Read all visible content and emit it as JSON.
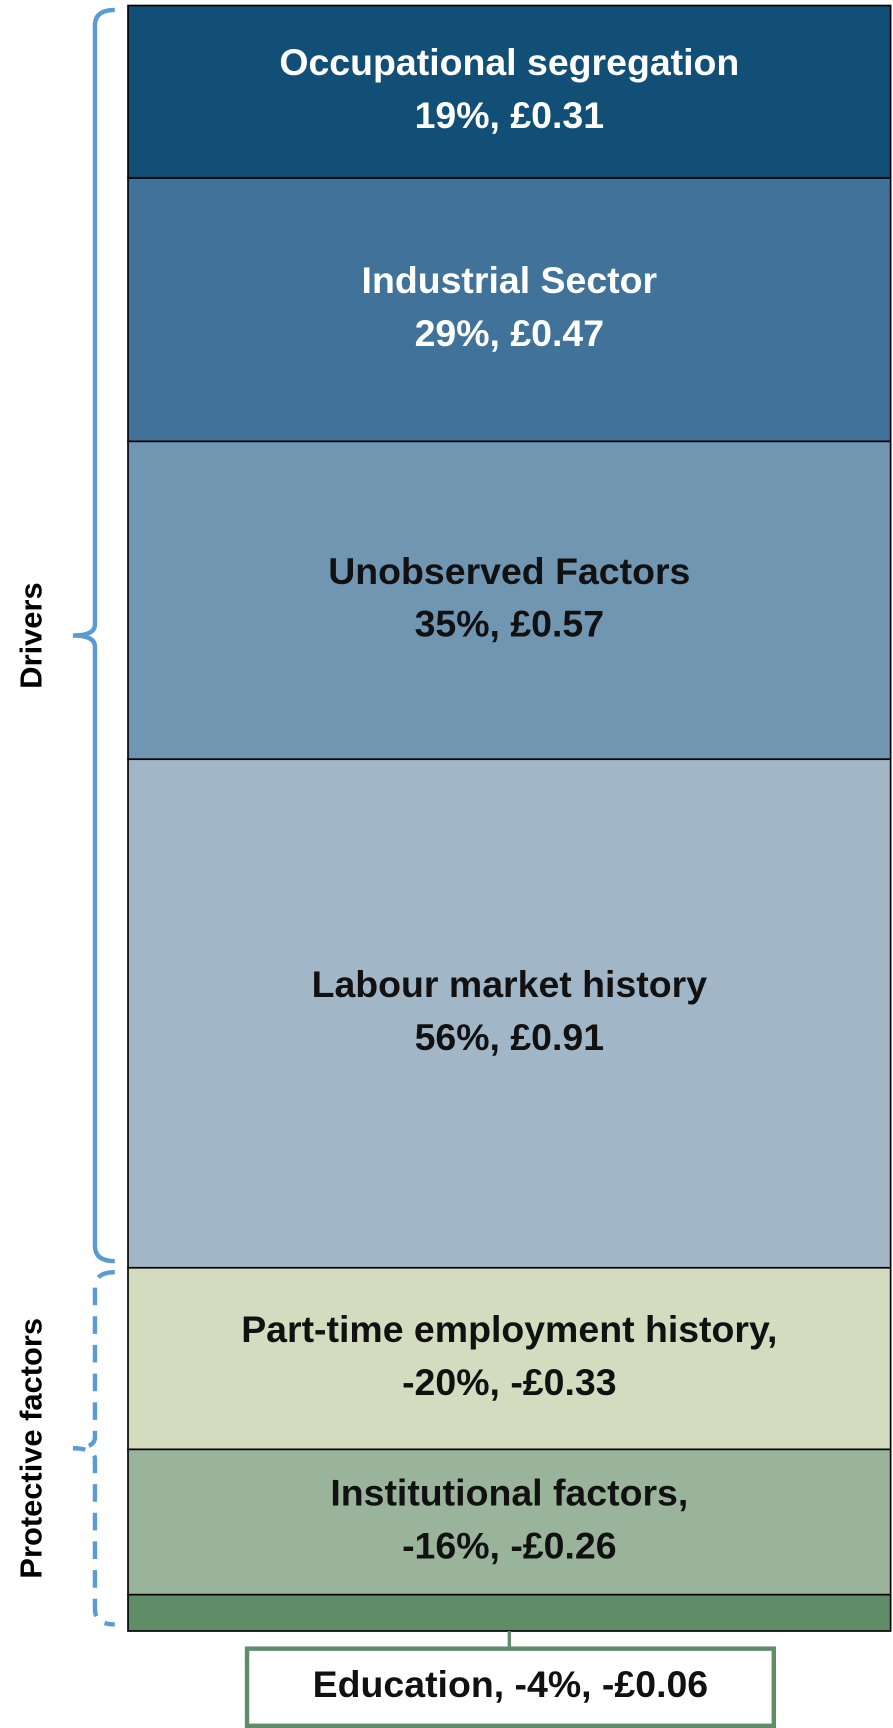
{
  "chart_data": {
    "type": "stacked-column",
    "groups": [
      {
        "name": "Drivers",
        "segments": [
          {
            "category": "Occupational segregation",
            "value": 19,
            "value_label": "19%, £0.31",
            "color": "#124f77"
          },
          {
            "category": "Industrial Sector",
            "value": 29,
            "value_label": "29%, £0.47",
            "color": "#41739a"
          },
          {
            "category": "Unobserved Factors",
            "value": 35,
            "value_label": "35%, £0.57",
            "color": "#7096b2"
          },
          {
            "category": "Labour market history",
            "value": 56,
            "value_label": "56%, £0.91",
            "color": "#a1b7c8"
          }
        ]
      },
      {
        "name": "Protective factors",
        "segments": [
          {
            "category": "Part-time employment history,",
            "value": -20,
            "value_label": "-20%, -£0.33",
            "color": "#d3dcbf"
          },
          {
            "category": "Institutional factors,",
            "value": -16,
            "value_label": "-16%, -£0.26",
            "color": "#99b49b"
          },
          {
            "category": "Education,",
            "value": -4,
            "value_label": "-4%, -£0.06",
            "color": "#5e8d68"
          }
        ]
      }
    ]
  }
}
